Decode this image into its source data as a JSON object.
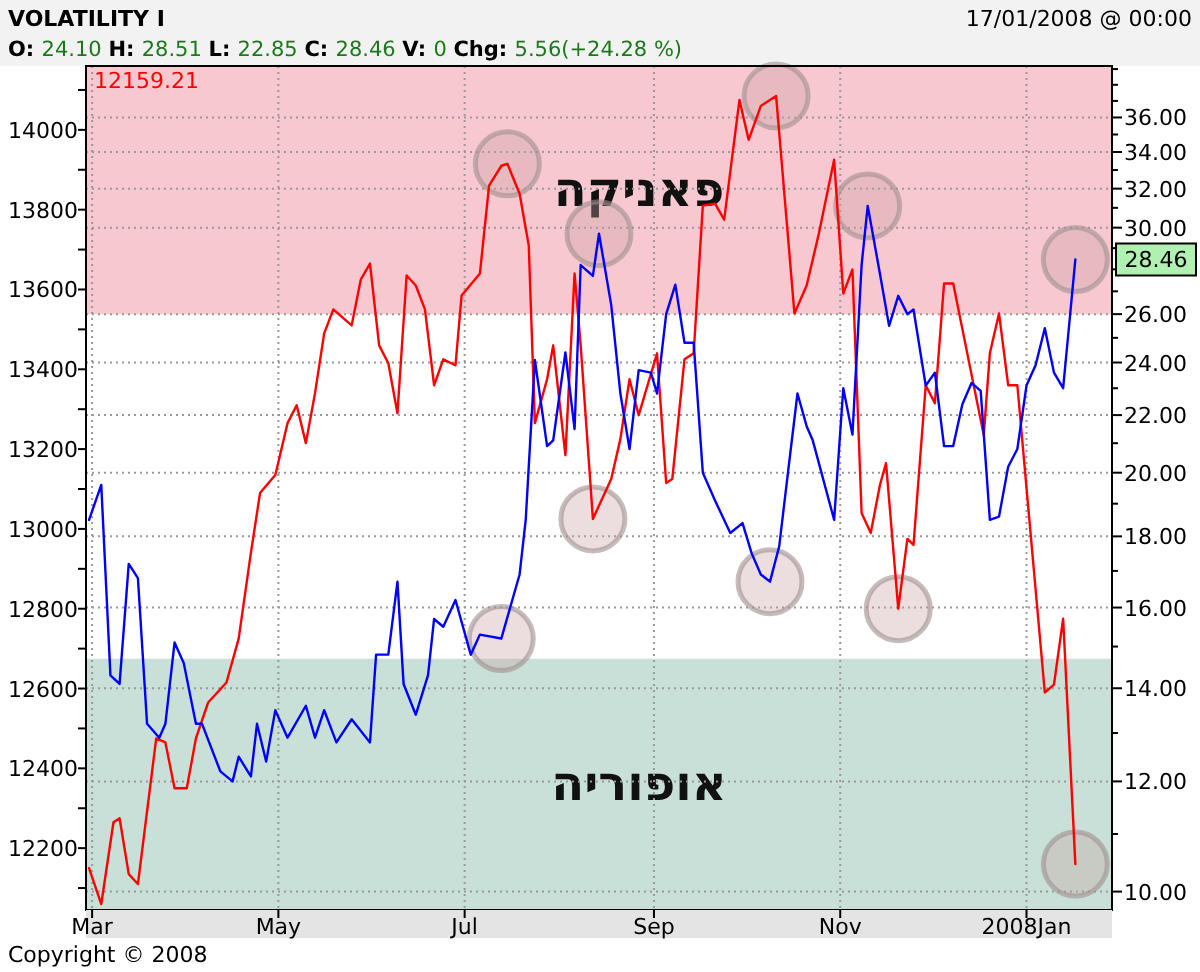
{
  "chart_data": {
    "type": "line",
    "title": "VOLATILITY I",
    "subtitle": "O: 24.10 H: 28.51 L: 22.85 C: 28.46 V: 0 Chg: 5.56(+24.28 %)",
    "annotations": [
      "17/01/2008 @ 00:00",
      "12159.21",
      "28.46",
      "Copyright © 2008"
    ],
    "xlim": [
      "2007-02-27",
      "2008-01-29"
    ],
    "xticks": [
      {
        "value": "2007-03-01",
        "label": "Mar"
      },
      {
        "value": "2007-05-01",
        "label": "May"
      },
      {
        "value": "2007-07-01",
        "label": "Jul"
      },
      {
        "value": "2007-09-01",
        "label": "Sep"
      },
      {
        "value": "2007-11-01",
        "label": "Nov"
      },
      {
        "value": "2008-01-01",
        "label": "2008Jan"
      }
    ],
    "ylim": [
      12045,
      14160
    ],
    "yticks": [
      {
        "value": 12100,
        "label": null
      },
      12200,
      {
        "value": 12300,
        "label": null
      },
      12400,
      {
        "value": 12500,
        "label": null
      },
      12600,
      {
        "value": 12700,
        "label": null
      },
      12800,
      {
        "value": 12900,
        "label": null
      },
      13000,
      {
        "value": 13100,
        "label": null
      },
      13200,
      {
        "value": 13300,
        "label": null
      },
      13400,
      {
        "value": 13500,
        "label": null
      },
      13600,
      {
        "value": 13700,
        "label": null
      },
      13800,
      {
        "value": 13900,
        "label": null
      },
      14000,
      {
        "value": 14100,
        "label": null
      }
    ],
    "y2lim": [
      9.7,
      39.2
    ],
    "y2ticks": [
      {
        "value": 10,
        "label": "10.00"
      },
      {
        "value": 11,
        "label": null
      },
      {
        "value": 12,
        "label": "12.00"
      },
      {
        "value": 13,
        "label": null
      },
      {
        "value": 14,
        "label": "14.00"
      },
      {
        "value": 15,
        "label": null
      },
      {
        "value": 16,
        "label": "16.00"
      },
      {
        "value": 17,
        "label": null
      },
      {
        "value": 18,
        "label": "18.00"
      },
      {
        "value": 19,
        "label": null
      },
      {
        "value": 20,
        "label": "20.00"
      },
      {
        "value": 21,
        "label": null
      },
      {
        "value": 22,
        "label": "22.00"
      },
      {
        "value": 23,
        "label": null
      },
      {
        "value": 24,
        "label": "24.00"
      },
      {
        "value": 25,
        "label": null
      },
      {
        "value": 26,
        "label": "26.00"
      },
      {
        "value": 27,
        "label": null
      },
      {
        "value": 28,
        "label": null
      },
      {
        "value": 29,
        "label": null
      },
      {
        "value": 30,
        "label": "30.00"
      },
      {
        "value": 31,
        "label": null
      },
      {
        "value": 32,
        "label": "32.00"
      },
      {
        "value": 33,
        "label": null
      },
      {
        "value": 34,
        "label": "34.00"
      },
      {
        "value": 35,
        "label": null
      },
      {
        "value": 36,
        "label": "36.00"
      },
      {
        "value": 37,
        "label": null
      },
      {
        "value": 38,
        "label": null
      },
      {
        "value": 39,
        "label": null
      }
    ],
    "log": "y2",
    "grid": true,
    "bands": [
      {
        "axis": "y2",
        "from": 26,
        "to": 39.2,
        "label": "פאניקה",
        "color": "#f8c8d0"
      },
      {
        "axis": "y2",
        "from": 9.7,
        "to": 14.7,
        "label": "אופוריה",
        "color": "#c8e0d8"
      }
    ],
    "series": [
      {
        "color": "#ff0000",
        "x": [
          "2007-02-28",
          "2007-03-04",
          "2007-03-08",
          "2007-03-10",
          "2007-03-13",
          "2007-03-16",
          "2007-03-22",
          "2007-03-25",
          "2007-03-28",
          "2007-04-01",
          "2007-04-04",
          "2007-04-08",
          "2007-04-14",
          "2007-04-18",
          "2007-04-22",
          "2007-04-25",
          "2007-04-30",
          "2007-05-04",
          "2007-05-07",
          "2007-05-10",
          "2007-05-13",
          "2007-05-16",
          "2007-05-19",
          "2007-05-25",
          "2007-05-28",
          "2007-05-31",
          "2007-06-03",
          "2007-06-06",
          "2007-06-09",
          "2007-06-12",
          "2007-06-15",
          "2007-06-18",
          "2007-06-21",
          "2007-06-24",
          "2007-06-28",
          "2007-06-30",
          "2007-07-06",
          "2007-07-09",
          "2007-07-13",
          "2007-07-15",
          "2007-07-19",
          "2007-07-22",
          "2007-07-24",
          "2007-07-28",
          "2007-07-30",
          "2007-08-03",
          "2007-08-06",
          "2007-08-08",
          "2007-08-12",
          "2007-08-18",
          "2007-08-21",
          "2007-08-24",
          "2007-08-27",
          "2007-09-02",
          "2007-09-05",
          "2007-09-07",
          "2007-09-11",
          "2007-09-14",
          "2007-09-17",
          "2007-09-21",
          "2007-09-24",
          "2007-09-29",
          "2007-10-02",
          "2007-10-06",
          "2007-10-11",
          "2007-10-17",
          "2007-10-21",
          "2007-10-25",
          "2007-10-30",
          "2007-11-02",
          "2007-11-05",
          "2007-11-08",
          "2007-11-11",
          "2007-11-14",
          "2007-11-16",
          "2007-11-20",
          "2007-11-23",
          "2007-11-25",
          "2007-11-29",
          "2007-12-02",
          "2007-12-05",
          "2007-12-08",
          "2007-12-18",
          "2007-12-20",
          "2007-12-23",
          "2007-12-26",
          "2007-12-29",
          "2008-01-07",
          "2008-01-10",
          "2008-01-13",
          "2008-01-17"
        ],
        "values": [
          12150,
          12060,
          12265,
          12275,
          12135,
          12110,
          12475,
          12465,
          12350,
          12350,
          12475,
          12565,
          12615,
          12725,
          12940,
          13090,
          13135,
          13265,
          13310,
          13215,
          13340,
          13490,
          13550,
          13510,
          13625,
          13665,
          13460,
          13415,
          13290,
          13635,
          13610,
          13550,
          13360,
          13425,
          13410,
          13585,
          13640,
          13860,
          13910,
          13915,
          13840,
          13710,
          13265,
          13375,
          13460,
          13185,
          13640,
          13460,
          13025,
          13125,
          13225,
          13375,
          13285,
          13440,
          13115,
          13125,
          13425,
          13440,
          13810,
          13815,
          13775,
          14075,
          13975,
          14060,
          14085,
          13540,
          13610,
          13740,
          13925,
          13590,
          13650,
          13040,
          12990,
          13110,
          13165,
          12800,
          12975,
          12960,
          13360,
          13315,
          13615,
          13615,
          13235,
          13440,
          13540,
          13360,
          13360,
          12590,
          12610,
          12775,
          12160
        ]
      },
      {
        "color": "#0000ff",
        "axis": "y2",
        "x": [
          "2007-02-28",
          "2007-03-04",
          "2007-03-07",
          "2007-03-10",
          "2007-03-13",
          "2007-03-16",
          "2007-03-19",
          "2007-03-23",
          "2007-03-25",
          "2007-03-28",
          "2007-03-31",
          "2007-04-04",
          "2007-04-06",
          "2007-04-12",
          "2007-04-16",
          "2007-04-18",
          "2007-04-22",
          "2007-04-24",
          "2007-04-27",
          "2007-04-30",
          "2007-05-04",
          "2007-05-10",
          "2007-05-13",
          "2007-05-16",
          "2007-05-20",
          "2007-05-25",
          "2007-05-31",
          "2007-06-02",
          "2007-06-06",
          "2007-06-09",
          "2007-06-11",
          "2007-06-15",
          "2007-06-19",
          "2007-06-21",
          "2007-06-24",
          "2007-06-28",
          "2007-07-03",
          "2007-07-06",
          "2007-07-13",
          "2007-07-19",
          "2007-07-21",
          "2007-07-24",
          "2007-07-28",
          "2007-07-30",
          "2007-08-03",
          "2007-08-06",
          "2007-08-08",
          "2007-08-12",
          "2007-08-14",
          "2007-08-18",
          "2007-08-21",
          "2007-08-24",
          "2007-08-27",
          "2007-08-31",
          "2007-09-02",
          "2007-09-05",
          "2007-09-08",
          "2007-09-11",
          "2007-09-14",
          "2007-09-17",
          "2007-09-21",
          "2007-09-26",
          "2007-09-30",
          "2007-10-03",
          "2007-10-06",
          "2007-10-09",
          "2007-10-12",
          "2007-10-15",
          "2007-10-18",
          "2007-10-21",
          "2007-10-23",
          "2007-10-30",
          "2007-11-02",
          "2007-11-05",
          "2007-11-08",
          "2007-11-10",
          "2007-11-14",
          "2007-11-17",
          "2007-11-20",
          "2007-11-23",
          "2007-11-25",
          "2007-11-29",
          "2007-12-02",
          "2007-12-05",
          "2007-12-08",
          "2007-12-11",
          "2007-12-14",
          "2007-12-17",
          "2007-12-20",
          "2007-12-23",
          "2007-12-26",
          "2007-12-29",
          "2008-01-01",
          "2008-01-04",
          "2008-01-07",
          "2008-01-10",
          "2008-01-13",
          "2008-01-17"
        ],
        "values": [
          18.5,
          19.6,
          14.3,
          14.1,
          17.2,
          16.8,
          13.2,
          12.9,
          13.2,
          15.1,
          14.6,
          13.2,
          13.2,
          12.2,
          12.0,
          12.5,
          12.1,
          13.2,
          12.4,
          13.5,
          12.9,
          13.6,
          12.9,
          13.5,
          12.8,
          13.3,
          12.8,
          14.8,
          14.8,
          16.7,
          14.1,
          13.4,
          14.3,
          15.7,
          15.5,
          16.2,
          14.8,
          15.3,
          15.2,
          16.9,
          18.5,
          24.1,
          20.9,
          21.1,
          24.4,
          21.5,
          28.2,
          27.7,
          29.7,
          26.4,
          22.8,
          20.8,
          23.7,
          23.6,
          22.8,
          26.0,
          27.3,
          24.8,
          24.8,
          20.0,
          19.1,
          18.1,
          18.4,
          17.5,
          16.9,
          16.7,
          17.7,
          20.1,
          22.8,
          21.6,
          21.1,
          18.5,
          23.0,
          21.3,
          28.2,
          31.1,
          27.8,
          25.5,
          26.8,
          26.0,
          26.2,
          23.1,
          23.6,
          20.9,
          20.9,
          22.4,
          23.2,
          22.9,
          18.5,
          18.6,
          20.2,
          20.8,
          23.1,
          23.9,
          25.4,
          23.6,
          23.0,
          28.46
        ]
      }
    ]
  }
}
